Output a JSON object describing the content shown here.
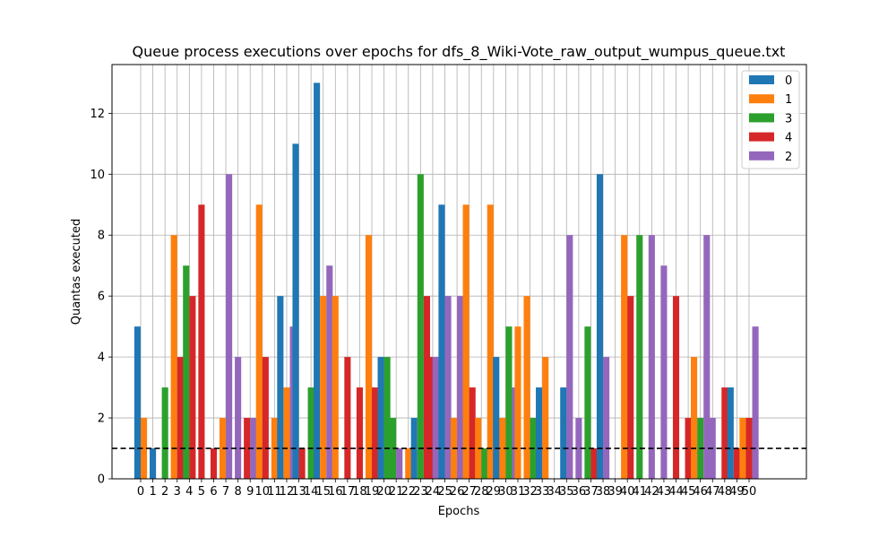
{
  "chart_data": {
    "type": "bar",
    "title": "Queue process executions over epochs for dfs_8_Wiki-Vote_raw_output_wumpus_queue.txt",
    "xlabel": "Epochs",
    "ylabel": "Quantas executed",
    "ylim": [
      0,
      13.6
    ],
    "yticks": [
      0,
      2,
      4,
      6,
      8,
      10,
      12
    ],
    "grid": true,
    "legend_position": "top-right",
    "reference_line": {
      "y": 1,
      "style": "dashed",
      "color": "#000000"
    },
    "categories": [
      "0",
      "1",
      "2",
      "3",
      "4",
      "5",
      "6",
      "7",
      "8",
      "9",
      "10",
      "11",
      "12",
      "13",
      "14",
      "15",
      "16",
      "17",
      "18",
      "19",
      "20",
      "21",
      "22",
      "23",
      "24",
      "25",
      "26",
      "27",
      "28",
      "29",
      "30",
      "31",
      "32",
      "33",
      "34",
      "35",
      "36",
      "37",
      "38",
      "39",
      "40",
      "41",
      "42",
      "43",
      "44",
      "45",
      "46",
      "47",
      "48",
      "49",
      "50"
    ],
    "series": [
      {
        "name": "0",
        "color": "#1f77b4",
        "values": [
          5,
          1,
          null,
          null,
          null,
          null,
          null,
          null,
          null,
          null,
          null,
          null,
          6,
          11,
          null,
          13,
          null,
          null,
          null,
          null,
          4,
          null,
          null,
          2,
          null,
          9,
          null,
          null,
          null,
          null,
          4,
          null,
          null,
          3,
          null,
          3,
          null,
          null,
          10,
          null,
          null,
          null,
          null,
          null,
          null,
          null,
          null,
          null,
          null,
          3,
          null
        ]
      },
      {
        "name": "1",
        "color": "#ff7f0e",
        "values": [
          2,
          null,
          null,
          8,
          null,
          null,
          null,
          2,
          null,
          null,
          9,
          2,
          3,
          null,
          null,
          6,
          6,
          null,
          null,
          8,
          null,
          null,
          1,
          null,
          null,
          null,
          2,
          9,
          2,
          9,
          2,
          5,
          6,
          4,
          null,
          null,
          null,
          null,
          null,
          null,
          8,
          null,
          null,
          null,
          null,
          null,
          4,
          null,
          null,
          null,
          2
        ]
      },
      {
        "name": "3",
        "color": "#2ca02c",
        "values": [
          null,
          null,
          3,
          null,
          7,
          null,
          null,
          null,
          null,
          null,
          null,
          null,
          null,
          null,
          3,
          null,
          null,
          null,
          null,
          null,
          4,
          2,
          null,
          10,
          null,
          null,
          null,
          null,
          1,
          null,
          5,
          null,
          2,
          null,
          null,
          null,
          null,
          5,
          null,
          null,
          null,
          8,
          null,
          null,
          null,
          null,
          2,
          null,
          null,
          null,
          null
        ]
      },
      {
        "name": "4",
        "color": "#d62728",
        "values": [
          null,
          null,
          null,
          4,
          6,
          9,
          1,
          null,
          null,
          2,
          4,
          null,
          null,
          1,
          null,
          null,
          null,
          4,
          3,
          3,
          null,
          null,
          null,
          6,
          4,
          null,
          null,
          3,
          null,
          null,
          null,
          null,
          null,
          null,
          null,
          null,
          null,
          1,
          null,
          null,
          6,
          null,
          null,
          null,
          6,
          2,
          null,
          null,
          3,
          1,
          2
        ]
      },
      {
        "name": "2",
        "color": "#9467bd",
        "values": [
          null,
          null,
          null,
          null,
          null,
          null,
          null,
          10,
          4,
          2,
          null,
          null,
          5,
          null,
          null,
          7,
          null,
          null,
          null,
          null,
          null,
          1,
          null,
          null,
          4,
          6,
          6,
          null,
          null,
          2,
          3,
          null,
          null,
          null,
          null,
          8,
          2,
          null,
          4,
          null,
          null,
          null,
          8,
          7,
          null,
          null,
          8,
          2,
          null,
          1,
          5
        ]
      }
    ]
  }
}
